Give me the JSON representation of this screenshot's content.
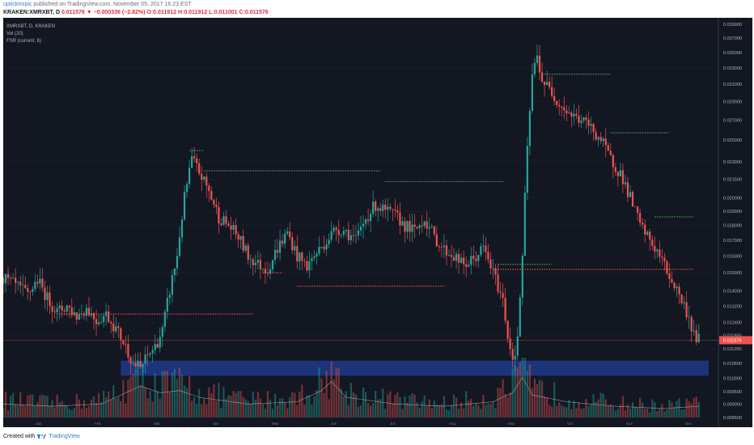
{
  "header": {
    "author": "opticktropic",
    "published": "published on TradingView.com, November 05, 2017 16:23 EST",
    "symbol": "KRAKEN:XMRXBT, D",
    "last": "0.011576",
    "change": "−0.000336 (−2.82%)",
    "open": "O:0.011912",
    "high": "H:0.011912",
    "low": "L:0.011001",
    "close": "C:0.011576"
  },
  "legend": {
    "pair": "XMRXBT, D, KRAKEN",
    "vol": "Vol (20)",
    "fsr": "FSR (current, 6)"
  },
  "footer": {
    "created_with": "Created with",
    "brand": "TradingView"
  },
  "colors": {
    "background": "#131722",
    "up": "#26a69a",
    "down": "#ef5350",
    "support_line": "#ef5350",
    "resistance_line": "#4caf50",
    "zone": "#1e3a8a",
    "price_tag": "#ef5350"
  },
  "chart_data": {
    "type": "candlestick",
    "symbol": "XMRXBT",
    "interval": "D",
    "exchange": "KRAKEN",
    "scale": "log",
    "price_ticks": [
      "0.039000",
      "0.037000",
      "0.035000",
      "0.033000",
      "0.031000",
      "0.029000",
      "0.027000",
      "0.025000",
      "0.023000",
      "0.021500",
      "0.020000",
      "0.019000",
      "0.018000",
      "0.017000",
      "0.016000",
      "0.015000",
      "0.014000",
      "0.013200",
      "0.012400",
      "0.011800",
      "0.011200",
      "0.010600",
      "0.010000",
      "0.009500",
      "0.009050",
      "0.008600"
    ],
    "time_labels": [
      "Jan",
      "Feb",
      "Mar",
      "Apr",
      "May",
      "Jun",
      "Jul",
      "Aug",
      "Sep",
      "Oct",
      "Nov",
      "Dec"
    ],
    "last_price_tag": "0.011576",
    "last_price": 0.011576,
    "price_path": [
      [
        0,
        0.0147
      ],
      [
        6,
        0.0142
      ],
      [
        10,
        0.0138
      ],
      [
        14,
        0.0146
      ],
      [
        18,
        0.0136
      ],
      [
        22,
        0.0129
      ],
      [
        26,
        0.0132
      ],
      [
        30,
        0.0127
      ],
      [
        34,
        0.0131
      ],
      [
        38,
        0.0125
      ],
      [
        42,
        0.0128
      ],
      [
        46,
        0.0121
      ],
      [
        50,
        0.0113
      ],
      [
        53,
        0.0106
      ],
      [
        56,
        0.0104
      ],
      [
        59,
        0.0109
      ],
      [
        62,
        0.0113
      ],
      [
        65,
        0.012
      ],
      [
        68,
        0.014
      ],
      [
        71,
        0.016
      ],
      [
        74,
        0.02
      ],
      [
        77,
        0.0232
      ],
      [
        80,
        0.0221
      ],
      [
        84,
        0.0205
      ],
      [
        88,
        0.0186
      ],
      [
        92,
        0.018
      ],
      [
        96,
        0.0172
      ],
      [
        100,
        0.016
      ],
      [
        104,
        0.0155
      ],
      [
        108,
        0.0152
      ],
      [
        112,
        0.0165
      ],
      [
        116,
        0.0175
      ],
      [
        120,
        0.016
      ],
      [
        124,
        0.0154
      ],
      [
        128,
        0.0162
      ],
      [
        132,
        0.017
      ],
      [
        136,
        0.0178
      ],
      [
        140,
        0.0176
      ],
      [
        144,
        0.017
      ],
      [
        148,
        0.0185
      ],
      [
        152,
        0.0195
      ],
      [
        156,
        0.019
      ],
      [
        160,
        0.0187
      ],
      [
        164,
        0.018
      ],
      [
        168,
        0.0176
      ],
      [
        172,
        0.0185
      ],
      [
        176,
        0.0172
      ],
      [
        180,
        0.0164
      ],
      [
        184,
        0.016
      ],
      [
        188,
        0.0154
      ],
      [
        192,
        0.0158
      ],
      [
        196,
        0.0165
      ],
      [
        200,
        0.015
      ],
      [
        204,
        0.0135
      ],
      [
        206,
        0.0118
      ],
      [
        208,
        0.0108
      ],
      [
        210,
        0.0115
      ],
      [
        212,
        0.016
      ],
      [
        214,
        0.024
      ],
      [
        216,
        0.032
      ],
      [
        218,
        0.0345
      ],
      [
        220,
        0.0315
      ],
      [
        224,
        0.03
      ],
      [
        228,
        0.0285
      ],
      [
        232,
        0.0275
      ],
      [
        236,
        0.027
      ],
      [
        240,
        0.0262
      ],
      [
        244,
        0.025
      ],
      [
        248,
        0.0232
      ],
      [
        252,
        0.022
      ],
      [
        256,
        0.02
      ],
      [
        260,
        0.018
      ],
      [
        264,
        0.017
      ],
      [
        268,
        0.016
      ],
      [
        272,
        0.0148
      ],
      [
        276,
        0.0138
      ],
      [
        280,
        0.0126
      ],
      [
        282,
        0.0118
      ],
      [
        284,
        0.0116
      ]
    ],
    "volume_path": [
      [
        0,
        0.3
      ],
      [
        20,
        0.25
      ],
      [
        40,
        0.3
      ],
      [
        50,
        0.55
      ],
      [
        56,
        0.7
      ],
      [
        64,
        0.55
      ],
      [
        72,
        0.6
      ],
      [
        80,
        0.45
      ],
      [
        100,
        0.3
      ],
      [
        120,
        0.35
      ],
      [
        130,
        0.6
      ],
      [
        134,
        0.8
      ],
      [
        140,
        0.45
      ],
      [
        160,
        0.3
      ],
      [
        180,
        0.25
      ],
      [
        200,
        0.35
      ],
      [
        208,
        0.55
      ],
      [
        212,
        0.9
      ],
      [
        216,
        0.5
      ],
      [
        230,
        0.35
      ],
      [
        250,
        0.25
      ],
      [
        270,
        0.2
      ],
      [
        284,
        0.25
      ]
    ],
    "levels": [
      {
        "kind": "support",
        "price": 0.0128,
        "x_from": 22,
        "x_to": 102
      },
      {
        "kind": "support",
        "price": 0.015,
        "x_from": 106,
        "x_to": 114
      },
      {
        "kind": "support",
        "price": 0.01425,
        "x_from": 120,
        "x_to": 180
      },
      {
        "kind": "support",
        "price": 0.0152,
        "x_from": 200,
        "x_to": 282
      },
      {
        "kind": "resistance",
        "price": 0.024,
        "x_from": 76,
        "x_to": 82
      },
      {
        "kind": "resistance",
        "price": 0.0222,
        "x_from": 82,
        "x_to": 154
      },
      {
        "kind": "resistance",
        "price": 0.0213,
        "x_from": 156,
        "x_to": 204
      },
      {
        "kind": "resistance",
        "price": 0.0155,
        "x_from": 202,
        "x_to": 224
      },
      {
        "kind": "resistance",
        "price": 0.0322,
        "x_from": 220,
        "x_to": 248
      },
      {
        "kind": "resistance",
        "price": 0.0257,
        "x_from": 248,
        "x_to": 272
      },
      {
        "kind": "resistance",
        "price": 0.0186,
        "x_from": 266,
        "x_to": 282
      }
    ],
    "zone": {
      "price_high": 0.0107,
      "price_low": 0.0101,
      "x_from": 48,
      "x_to": 288
    },
    "yrange": [
      0.0086,
      0.0395
    ],
    "xrange": [
      0,
      292
    ]
  }
}
